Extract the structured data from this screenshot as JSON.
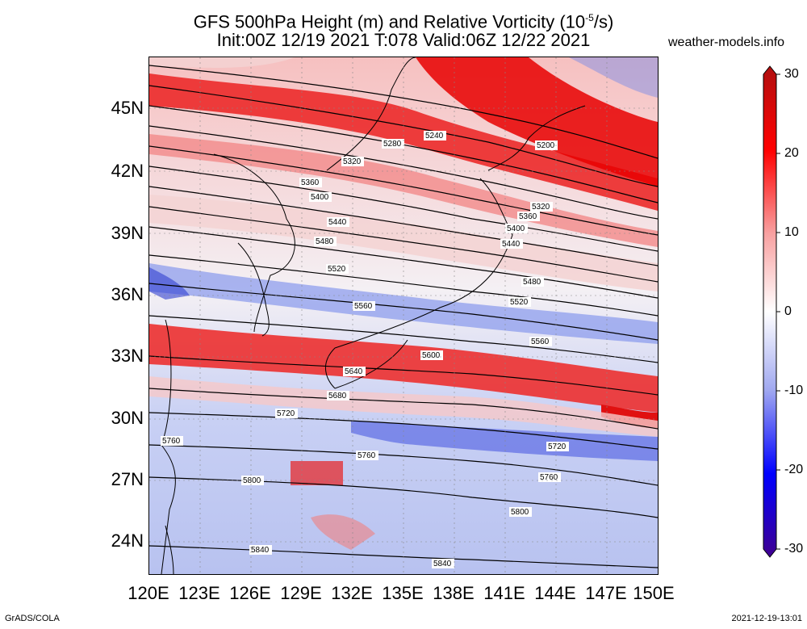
{
  "title_line1_pre": "GFS 500hPa Height (m) and Relative Vorticity (10",
  "title_line1_sup": "-5",
  "title_line1_post": "/s)",
  "title_line2": "Init:00Z 12/19 2021 T:078 Valid:06Z 12/22 2021",
  "site": "weather-models.info",
  "footer_left": "GrADS/COLA",
  "footer_right": "2021-12-19-13:01",
  "lat_labels": [
    "45N",
    "42N",
    "39N",
    "36N",
    "33N",
    "30N",
    "27N",
    "24N"
  ],
  "lon_labels": [
    "120E",
    "123E",
    "126E",
    "129E",
    "132E",
    "135E",
    "138E",
    "141E",
    "144E",
    "147E",
    "150E"
  ],
  "colorbar_labels": [
    "30",
    "20",
    "10",
    "0",
    "-10",
    "-20",
    "-30"
  ],
  "colors": {
    "vort_pos_strong": "#e80000",
    "vort_pos_weak": "#f8b8b8",
    "vort_neg_weak": "#b8c4f4",
    "vort_neg_strong": "#1818d8",
    "contour": "#000000"
  },
  "height_contours": [
    {
      "value": "5200",
      "label": "5200"
    },
    {
      "value": "5240",
      "label": "5240"
    },
    {
      "value": "5280",
      "label": "5280"
    },
    {
      "value": "5320",
      "label": "5320"
    },
    {
      "value": "5320b",
      "label": "5320"
    },
    {
      "value": "5360",
      "label": "5360"
    },
    {
      "value": "5360b",
      "label": "5360"
    },
    {
      "value": "5400",
      "label": "5400"
    },
    {
      "value": "5400b",
      "label": "5400"
    },
    {
      "value": "5440",
      "label": "5440"
    },
    {
      "value": "5440b",
      "label": "5440"
    },
    {
      "value": "5480",
      "label": "5480"
    },
    {
      "value": "5480b",
      "label": "5480"
    },
    {
      "value": "5520",
      "label": "5520"
    },
    {
      "value": "5520b",
      "label": "5520"
    },
    {
      "value": "5560",
      "label": "5560"
    },
    {
      "value": "5560b",
      "label": "5560"
    },
    {
      "value": "5600",
      "label": "5600"
    },
    {
      "value": "5640",
      "label": "5640"
    },
    {
      "value": "5680",
      "label": "5680"
    },
    {
      "value": "5720",
      "label": "5720"
    },
    {
      "value": "5720b",
      "label": "5720"
    },
    {
      "value": "5760",
      "label": "5760"
    },
    {
      "value": "5760b",
      "label": "5760"
    },
    {
      "value": "5760c",
      "label": "5760"
    },
    {
      "value": "5800",
      "label": "5800"
    },
    {
      "value": "5800b",
      "label": "5800"
    },
    {
      "value": "5840",
      "label": "5840"
    },
    {
      "value": "5840b",
      "label": "5840"
    }
  ]
}
